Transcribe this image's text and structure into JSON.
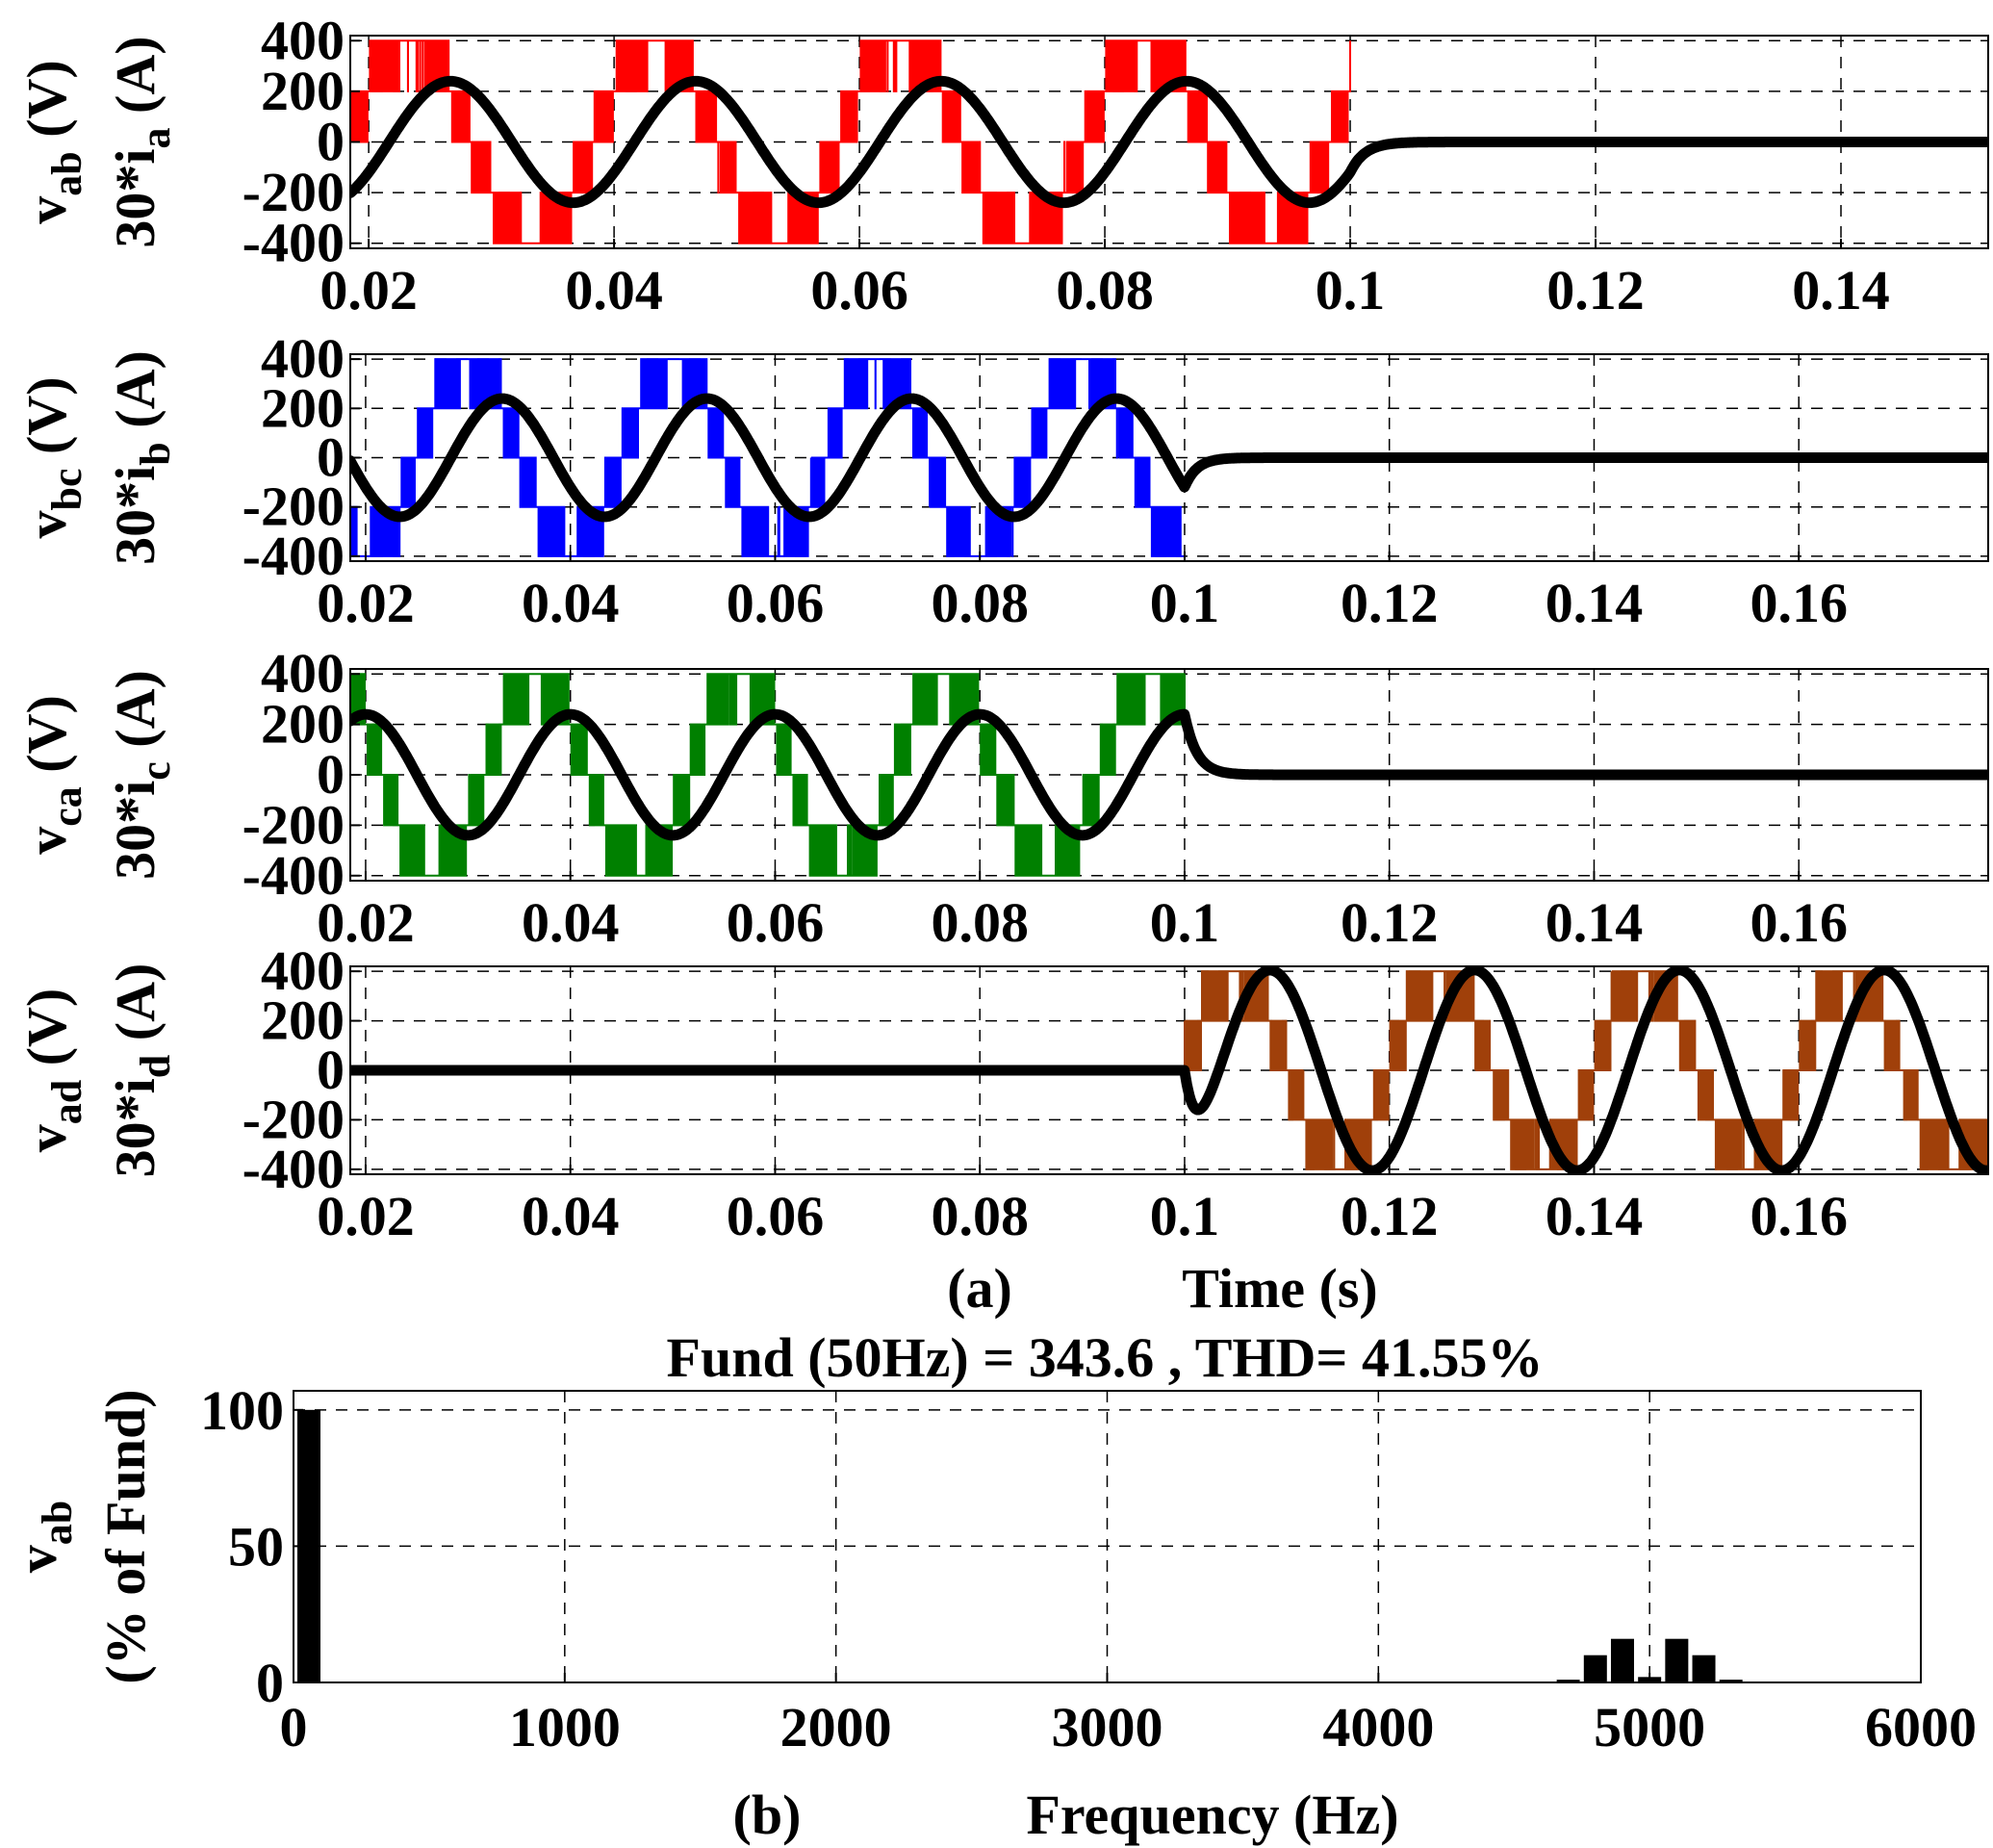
{
  "panel_a_caption": "(a)",
  "panel_b_caption": "(b)",
  "colors": {
    "vab": "#ff0000",
    "vbc": "#0000ff",
    "vca": "#008000",
    "vad": "#a0400a",
    "current": "#000000"
  },
  "chart_data": [
    {
      "id": "vab",
      "type": "line",
      "title": "",
      "ylabel_voltage": "v",
      "ylabel_voltage_sub": "ab",
      "ylabel_voltage_unit": "(V)",
      "ylabel_current": "30*i",
      "ylabel_current_sub": "a",
      "ylabel_current_unit": "(A)",
      "xlabel": "",
      "xlim": [
        0.0185,
        0.152
      ],
      "ylim": [
        -420,
        420
      ],
      "xticks": [
        0.02,
        0.04,
        0.06,
        0.08,
        0.1,
        0.12,
        0.14
      ],
      "xtick_labels": [
        "0.02",
        "0.04",
        "0.06",
        "0.08",
        "0.1",
        "0.12",
        "0.14"
      ],
      "yticks": [
        400,
        200,
        0,
        -200,
        -400
      ],
      "ytick_labels": [
        "400",
        "200",
        "0",
        "-200",
        "-400"
      ],
      "grid": true,
      "series": [
        {
          "name": "v_ab",
          "kind": "multilevel PWM voltage",
          "amplitude_V": 400,
          "levels": [
            -400,
            -200,
            0,
            200,
            400
          ],
          "frequency_Hz": 50,
          "phase_deg": 30,
          "t_end_s": 0.1,
          "color": "#ff0000"
        },
        {
          "name": "30*i_a",
          "kind": "sinusoidal current",
          "amplitude": 240,
          "frequency_Hz": 50,
          "phase_deg": -30,
          "t_off_s": 0.1,
          "decay_tau_s": 0.0012,
          "color": "#000000"
        }
      ]
    },
    {
      "id": "vbc",
      "type": "line",
      "title": "",
      "ylabel_voltage": "v",
      "ylabel_voltage_sub": "bc",
      "ylabel_voltage_unit": "(V)",
      "ylabel_current": "30*i",
      "ylabel_current_sub": "b",
      "ylabel_current_unit": "(A)",
      "xlabel": "",
      "xlim": [
        0.0185,
        0.1785
      ],
      "ylim": [
        -420,
        420
      ],
      "xticks": [
        0.02,
        0.04,
        0.06,
        0.08,
        0.1,
        0.12,
        0.14,
        0.16
      ],
      "xtick_labels": [
        "0.02",
        "0.04",
        "0.06",
        "0.08",
        "0.1",
        "0.12",
        "0.14",
        "0.16"
      ],
      "yticks": [
        400,
        200,
        0,
        -200,
        -400
      ],
      "ytick_labels": [
        "400",
        "200",
        "0",
        "-200",
        "-400"
      ],
      "grid": true,
      "series": [
        {
          "name": "v_bc",
          "kind": "multilevel PWM voltage",
          "amplitude_V": 400,
          "levels": [
            -400,
            -200,
            0,
            200,
            400
          ],
          "frequency_Hz": 50,
          "phase_deg": -90,
          "t_end_s": 0.1,
          "color": "#0000ff"
        },
        {
          "name": "30*i_b",
          "kind": "sinusoidal current",
          "amplitude": 240,
          "frequency_Hz": 50,
          "phase_deg": -150,
          "t_off_s": 0.1,
          "decay_tau_s": 0.0012,
          "color": "#000000"
        }
      ]
    },
    {
      "id": "vca",
      "type": "line",
      "title": "",
      "ylabel_voltage": "v",
      "ylabel_voltage_sub": "ca",
      "ylabel_voltage_unit": "(V)",
      "ylabel_current": "30*i",
      "ylabel_current_sub": "c",
      "ylabel_current_unit": "(A)",
      "xlabel": "",
      "xlim": [
        0.0185,
        0.1785
      ],
      "ylim": [
        -420,
        420
      ],
      "xticks": [
        0.02,
        0.04,
        0.06,
        0.08,
        0.1,
        0.12,
        0.14,
        0.16
      ],
      "xtick_labels": [
        "0.02",
        "0.04",
        "0.06",
        "0.08",
        "0.1",
        "0.12",
        "0.14",
        "0.16"
      ],
      "yticks": [
        400,
        200,
        0,
        -200,
        -400
      ],
      "ytick_labels": [
        "400",
        "200",
        "0",
        "-200",
        "-400"
      ],
      "grid": true,
      "series": [
        {
          "name": "v_ca",
          "kind": "multilevel PWM voltage",
          "amplitude_V": 400,
          "levels": [
            -400,
            -200,
            0,
            200,
            400
          ],
          "frequency_Hz": 50,
          "phase_deg": 150,
          "t_end_s": 0.1,
          "color": "#008000"
        },
        {
          "name": "30*i_c",
          "kind": "sinusoidal current",
          "amplitude": 240,
          "frequency_Hz": 50,
          "phase_deg": 90,
          "t_off_s": 0.1,
          "decay_tau_s": 0.0012,
          "color": "#000000"
        }
      ]
    },
    {
      "id": "vad",
      "type": "line",
      "title": "",
      "ylabel_voltage": "v",
      "ylabel_voltage_sub": "ad",
      "ylabel_voltage_unit": "(V)",
      "ylabel_current": "30*i",
      "ylabel_current_sub": "d",
      "ylabel_current_unit": "(A)",
      "xlabel": "Time (s)",
      "xlim": [
        0.0185,
        0.1785
      ],
      "ylim": [
        -420,
        420
      ],
      "xticks": [
        0.02,
        0.04,
        0.06,
        0.08,
        0.1,
        0.12,
        0.14,
        0.16
      ],
      "xtick_labels": [
        "0.02",
        "0.04",
        "0.06",
        "0.08",
        "0.1",
        "0.12",
        "0.14",
        "0.16"
      ],
      "yticks": [
        400,
        200,
        0,
        -200,
        -400
      ],
      "ytick_labels": [
        "400",
        "200",
        "0",
        "-200",
        "-400"
      ],
      "grid": true,
      "series": [
        {
          "name": "v_ad",
          "kind": "multilevel PWM voltage",
          "amplitude_V": 400,
          "levels": [
            -400,
            -200,
            0,
            200,
            400
          ],
          "frequency_Hz": 50,
          "phase_deg": 0,
          "t_start_s": 0.1,
          "color": "#a0400a"
        },
        {
          "name": "30*i_d",
          "kind": "sinusoidal current",
          "amplitude": 405,
          "frequency_Hz": 50,
          "phase_deg": -60,
          "t_on_s": 0.1,
          "rise_tau_s": 0.0012,
          "color": "#000000"
        }
      ]
    },
    {
      "id": "vab_fft",
      "type": "bar",
      "title": "Fund (50Hz) = 343.6 , THD= 41.55%",
      "ylabel": "v",
      "ylabel_sub": "ab",
      "ylabel_line2": "(% of Fund)",
      "xlabel": "Frequency (Hz)",
      "xlim": [
        0,
        6000
      ],
      "ylim": [
        0,
        107
      ],
      "xticks": [
        0,
        1000,
        2000,
        3000,
        4000,
        5000,
        6000
      ],
      "xtick_labels": [
        "0",
        "1000",
        "2000",
        "3000",
        "4000",
        "5000",
        "6000"
      ],
      "yticks": [
        0,
        50,
        100
      ],
      "ytick_labels": [
        "0",
        "50",
        "100"
      ],
      "grid": true,
      "bars": {
        "x": [
          50,
          4700,
          4800,
          4900,
          5000,
          5100,
          5200,
          5300
        ],
        "values": [
          100,
          1,
          10,
          16,
          2,
          16,
          10,
          1
        ]
      }
    }
  ]
}
